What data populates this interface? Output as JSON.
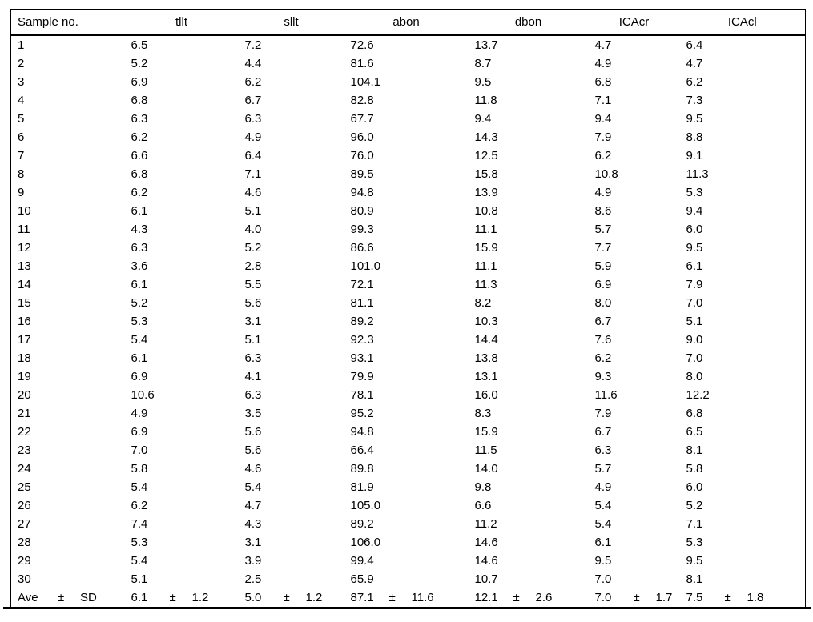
{
  "colors": {
    "background": "#ffffff",
    "text": "#000000",
    "rule": "#000000"
  },
  "chart_data": {
    "type": "table",
    "columns": [
      "Sample no.",
      "tllt",
      "sllt",
      "abon",
      "dbon",
      "ICAcr",
      "ICAcl"
    ],
    "rows": [
      [
        "1",
        "6.5",
        "7.2",
        "72.6",
        "13.7",
        "4.7",
        "6.4"
      ],
      [
        "2",
        "5.2",
        "4.4",
        "81.6",
        "8.7",
        "4.9",
        "4.7"
      ],
      [
        "3",
        "6.9",
        "6.2",
        "104.1",
        "9.5",
        "6.8",
        "6.2"
      ],
      [
        "4",
        "6.8",
        "6.7",
        "82.8",
        "11.8",
        "7.1",
        "7.3"
      ],
      [
        "5",
        "6.3",
        "6.3",
        "67.7",
        "9.4",
        "9.4",
        "9.5"
      ],
      [
        "6",
        "6.2",
        "4.9",
        "96.0",
        "14.3",
        "7.9",
        "8.8"
      ],
      [
        "7",
        "6.6",
        "6.4",
        "76.0",
        "12.5",
        "6.2",
        "9.1"
      ],
      [
        "8",
        "6.8",
        "7.1",
        "89.5",
        "15.8",
        "10.8",
        "11.3"
      ],
      [
        "9",
        "6.2",
        "4.6",
        "94.8",
        "13.9",
        "4.9",
        "5.3"
      ],
      [
        "10",
        "6.1",
        "5.1",
        "80.9",
        "10.8",
        "8.6",
        "9.4"
      ],
      [
        "11",
        "4.3",
        "4.0",
        "99.3",
        "11.1",
        "5.7",
        "6.0"
      ],
      [
        "12",
        "6.3",
        "5.2",
        "86.6",
        "15.9",
        "7.7",
        "9.5"
      ],
      [
        "13",
        "3.6",
        "2.8",
        "101.0",
        "11.1",
        "5.9",
        "6.1"
      ],
      [
        "14",
        "6.1",
        "5.5",
        "72.1",
        "11.3",
        "6.9",
        "7.9"
      ],
      [
        "15",
        "5.2",
        "5.6",
        "81.1",
        "8.2",
        "8.0",
        "7.0"
      ],
      [
        "16",
        "5.3",
        "3.1",
        "89.2",
        "10.3",
        "6.7",
        "5.1"
      ],
      [
        "17",
        "5.4",
        "5.1",
        "92.3",
        "14.4",
        "7.6",
        "9.0"
      ],
      [
        "18",
        "6.1",
        "6.3",
        "93.1",
        "13.8",
        "6.2",
        "7.0"
      ],
      [
        "19",
        "6.9",
        "4.1",
        "79.9",
        "13.1",
        "9.3",
        "8.0"
      ],
      [
        "20",
        "10.6",
        "6.3",
        "78.1",
        "16.0",
        "11.6",
        "12.2"
      ],
      [
        "21",
        "4.9",
        "3.5",
        "95.2",
        "8.3",
        "7.9",
        "6.8"
      ],
      [
        "22",
        "6.9",
        "5.6",
        "94.8",
        "15.9",
        "6.7",
        "6.5"
      ],
      [
        "23",
        "7.0",
        "5.6",
        "66.4",
        "11.5",
        "6.3",
        "8.1"
      ],
      [
        "24",
        "5.8",
        "4.6",
        "89.8",
        "14.0",
        "5.7",
        "5.8"
      ],
      [
        "25",
        "5.4",
        "5.4",
        "81.9",
        "9.8",
        "4.9",
        "6.0"
      ],
      [
        "26",
        "6.2",
        "4.7",
        "105.0",
        "6.6",
        "5.4",
        "5.2"
      ],
      [
        "27",
        "7.4",
        "4.3",
        "89.2",
        "11.2",
        "5.4",
        "7.1"
      ],
      [
        "28",
        "5.3",
        "3.1",
        "106.0",
        "14.6",
        "6.1",
        "5.3"
      ],
      [
        "29",
        "5.4",
        "3.9",
        "99.4",
        "14.6",
        "9.5",
        "9.5"
      ],
      [
        "30",
        "5.1",
        "2.5",
        "65.9",
        "10.7",
        "7.0",
        "8.1"
      ]
    ],
    "summary": {
      "label": "Ave",
      "pm": "±",
      "sd_label": "SD",
      "values": [
        [
          "6.1",
          "1.2"
        ],
        [
          "5.0",
          "1.2"
        ],
        [
          "87.1",
          "11.6"
        ],
        [
          "12.1",
          "2.6"
        ],
        [
          "7.0",
          "1.7"
        ],
        [
          "7.5",
          "1.8"
        ]
      ]
    }
  }
}
